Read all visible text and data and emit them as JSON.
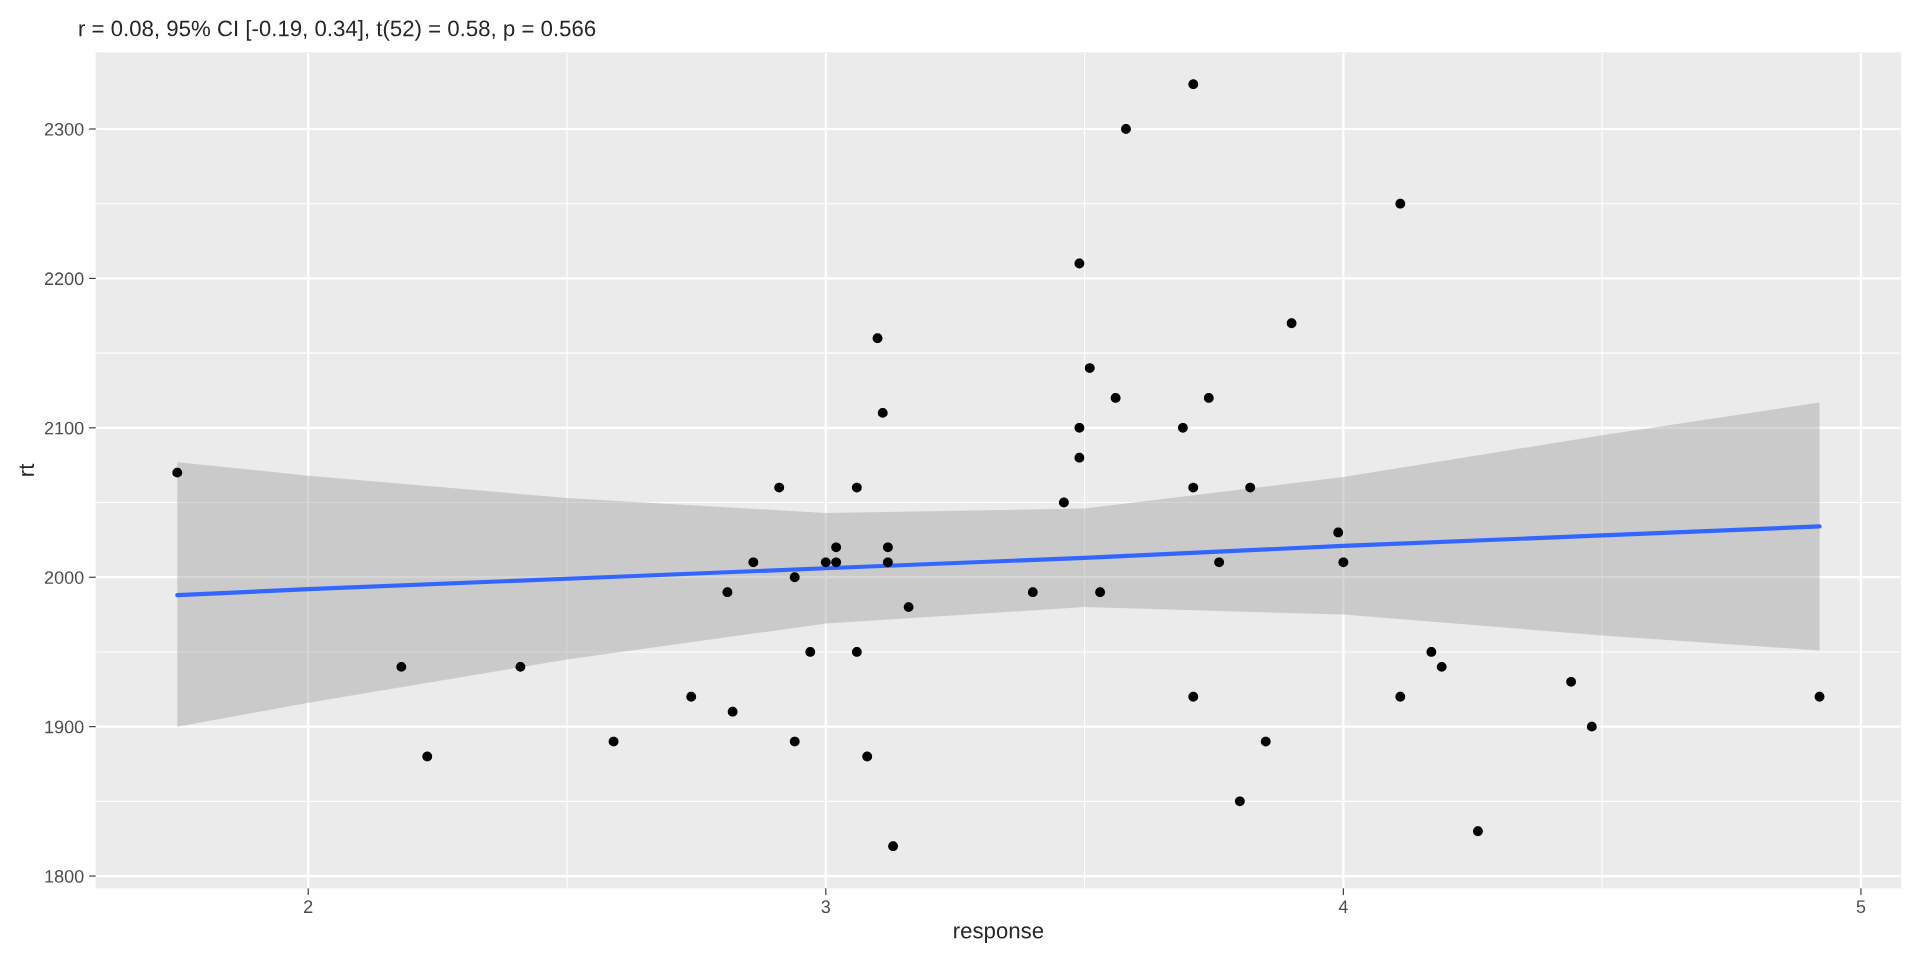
{
  "chart_data": {
    "type": "scatter",
    "title": "r = 0.08, 95% CI [-0.19, 0.34], t(52) = 0.58, p = 0.566",
    "xlabel": "response",
    "ylabel": "rt",
    "xlim": [
      1.59,
      5.077
    ],
    "ylim": [
      1792,
      2351
    ],
    "xticks": [
      2,
      3,
      4,
      5
    ],
    "yticks": [
      1800,
      1900,
      2000,
      2100,
      2200,
      2300
    ],
    "grid": true,
    "marker": "circle",
    "series": [
      {
        "color": "#000000",
        "x": [
          1.747,
          2.18,
          2.23,
          2.41,
          2.59,
          2.74,
          2.81,
          2.82,
          2.86,
          2.91,
          2.94,
          2.94,
          2.97,
          3.0,
          3.02,
          3.02,
          3.06,
          3.06,
          3.08,
          3.1,
          3.11,
          3.12,
          3.12,
          3.13,
          3.16,
          3.4,
          3.46,
          3.49,
          3.49,
          3.49,
          3.51,
          3.53,
          3.56,
          3.58,
          3.69,
          3.71,
          3.71,
          3.71,
          3.74,
          3.76,
          3.8,
          3.82,
          3.85,
          3.9,
          3.99,
          4.0,
          4.11,
          4.11,
          4.17,
          4.19,
          4.26,
          4.44,
          4.48,
          4.92
        ],
        "values": [
          2070,
          1940,
          1880,
          1940,
          1890,
          1920,
          1990,
          1910,
          2010,
          2060,
          2000,
          1890,
          1950,
          2010,
          2020,
          2010,
          1950,
          2060,
          1880,
          2160,
          2110,
          2020,
          2010,
          1820,
          1980,
          1990,
          2050,
          2080,
          2100,
          2210,
          2140,
          1990,
          2120,
          2300,
          2100,
          2330,
          2060,
          1920,
          2120,
          2010,
          1850,
          2060,
          1890,
          2170,
          2030,
          2010,
          1920,
          2250,
          1950,
          1940,
          1830,
          1930,
          1900,
          1920
        ]
      },
      {
        "type": "line",
        "color": "#3366ff",
        "marker": "none",
        "line_style": "solid",
        "x": [
          1.747,
          2,
          2.5,
          3,
          3.5,
          4,
          4.5,
          4.92
        ],
        "values": [
          1988,
          1992,
          1999,
          2006,
          2013,
          2021,
          2028,
          2034
        ],
        "lower": [
          1900,
          1916,
          1945,
          1969,
          1980,
          1975,
          1961,
          1951
        ],
        "upper": [
          2077,
          2068,
          2053,
          2043,
          2046,
          2067,
          2095,
          2117
        ]
      }
    ]
  }
}
